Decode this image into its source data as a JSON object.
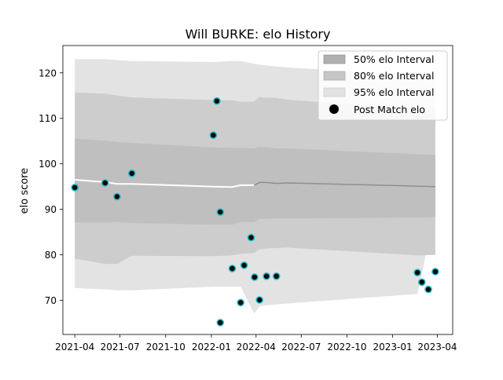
{
  "chart_data": {
    "type": "line",
    "title": "Will BURKE: elo History",
    "xlabel": "",
    "ylabel": "elo score",
    "x_ticks": [
      "2021-04",
      "2021-07",
      "2021-10",
      "2022-01",
      "2022-04",
      "2022-07",
      "2022-10",
      "2023-01",
      "2023-04"
    ],
    "y_ticks": [
      70,
      80,
      90,
      100,
      110,
      120
    ],
    "xlim": [
      "2021-03-08",
      "2023-05-02"
    ],
    "ylim": [
      62.5,
      126
    ],
    "grid": false,
    "legend_position": "top-right",
    "legend": {
      "band50": "50% elo Interval",
      "band80": "80% elo Interval",
      "band95": "95% elo Interval",
      "points": "Post Match elo"
    },
    "intervals": {
      "dates": [
        "2021-04-01",
        "2021-06-01",
        "2021-06-25",
        "2021-07-25",
        "2022-01-05",
        "2022-02-12",
        "2022-03-01",
        "2022-03-28",
        "2022-04-08",
        "2022-04-22",
        "2022-05-12",
        "2022-06-02",
        "2023-02-20",
        "2023-03-28"
      ],
      "median": [
        96.5,
        96.0,
        95.6,
        95.6,
        95.0,
        94.9,
        95.3,
        95.3,
        95.9,
        95.9,
        95.7,
        95.8,
        95.1,
        95.0
      ],
      "band50_low": [
        87.1,
        87.1,
        87.2,
        87.0,
        86.6,
        86.6,
        87.2,
        87.2,
        87.9,
        87.9,
        88.0,
        88.0,
        88.2,
        88.3
      ],
      "band50_high": [
        105.5,
        105.1,
        104.8,
        104.6,
        103.6,
        103.5,
        103.5,
        103.4,
        103.8,
        103.6,
        103.4,
        103.4,
        102.1,
        102.0
      ],
      "band80_low": [
        79.2,
        78.0,
        78.0,
        79.8,
        79.7,
        79.9,
        80.2,
        80.4,
        81.2,
        81.4,
        81.5,
        81.6,
        79.9,
        80.0
      ],
      "band80_high": [
        115.7,
        115.4,
        115.0,
        114.6,
        114.0,
        114.0,
        113.6,
        113.7,
        114.7,
        114.5,
        114.5,
        114.1,
        112.0,
        112.0
      ],
      "band95_low": [
        72.7,
        72.4,
        72.2,
        72.2,
        73.0,
        73.0,
        73.0,
        67.1,
        68.7,
        68.9,
        69.1,
        69.3,
        71.4,
        89.7
      ],
      "band95_high": [
        123.0,
        123.0,
        122.8,
        122.6,
        122.4,
        122.6,
        122.6,
        122.0,
        121.8,
        121.6,
        121.4,
        121.2,
        119.5,
        119.0
      ]
    },
    "series": [
      {
        "name": "Post Match elo",
        "x": [
          "2021-04-01",
          "2021-06-01",
          "2021-06-25",
          "2021-07-25",
          "2022-01-05",
          "2022-01-12",
          "2022-01-19",
          "2022-01-19",
          "2022-02-12",
          "2022-03-01",
          "2022-03-08",
          "2022-03-22",
          "2022-03-29",
          "2022-04-08",
          "2022-04-22",
          "2022-05-12",
          "2023-02-20",
          "2023-03-01",
          "2023-03-14",
          "2023-03-28"
        ],
        "y": [
          94.8,
          95.8,
          92.8,
          97.9,
          106.3,
          113.8,
          89.4,
          65.1,
          77.0,
          69.5,
          77.7,
          83.8,
          75.1,
          70.1,
          75.3,
          75.3,
          76.1,
          74.0,
          72.4,
          76.3
        ]
      }
    ]
  }
}
